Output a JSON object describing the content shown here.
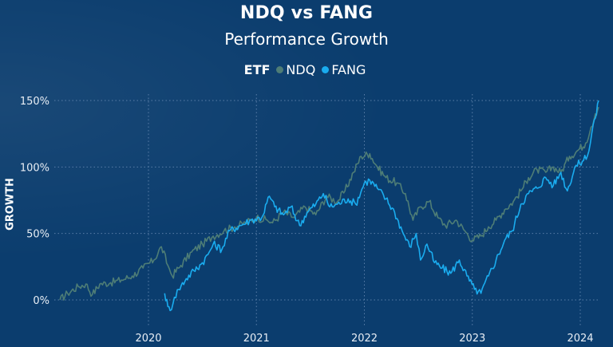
{
  "header": {
    "title": "NDQ vs FANG",
    "subtitle": "Performance Growth"
  },
  "legend": {
    "title": "ETF",
    "items": [
      {
        "label": "NDQ",
        "color": "#4E7D76"
      },
      {
        "label": "FANG",
        "color": "#1AACEF"
      }
    ]
  },
  "axes": {
    "ylabel": "GROWTH",
    "y_ticks": [
      "0%",
      "50%",
      "100%",
      "150%"
    ],
    "x_ticks": [
      "2020",
      "2021",
      "2022",
      "2023",
      "2024"
    ]
  },
  "colors": {
    "background": "#0B3D6E",
    "ndq": "#4E7D76",
    "fang": "#1AACEF",
    "grid": "#5A7EA8"
  },
  "chart_data": {
    "type": "line",
    "title": "NDQ vs FANG",
    "subtitle": "Performance Growth",
    "xlabel": "",
    "ylabel": "GROWTH",
    "ylim": [
      -15,
      155
    ],
    "xlim": [
      2019.15,
      2024.2
    ],
    "y_unit": "%",
    "grid": true,
    "legend_position": "top",
    "legend_title": "ETF",
    "series": [
      {
        "name": "NDQ",
        "color": "#4E7D76",
        "x": [
          2019.18,
          2019.25,
          2019.35,
          2019.42,
          2019.48,
          2019.55,
          2019.65,
          2019.75,
          2019.85,
          2019.95,
          2020.05,
          2020.12,
          2020.18,
          2020.22,
          2020.3,
          2020.4,
          2020.5,
          2020.6,
          2020.7,
          2020.8,
          2020.9,
          2021.0,
          2021.1,
          2021.15,
          2021.25,
          2021.35,
          2021.45,
          2021.55,
          2021.65,
          2021.75,
          2021.82,
          2021.9,
          2021.97,
          2022.05,
          2022.12,
          2022.2,
          2022.3,
          2022.38,
          2022.45,
          2022.52,
          2022.6,
          2022.68,
          2022.75,
          2022.85,
          2022.93,
          2023.0,
          2023.08,
          2023.15,
          2023.22,
          2023.3,
          2023.38,
          2023.45,
          2023.52,
          2023.6,
          2023.68,
          2023.75,
          2023.82,
          2023.9,
          2023.97,
          2024.05,
          2024.1,
          2024.14,
          2024.17
        ],
        "values": [
          0,
          5,
          10,
          12,
          4,
          12,
          13,
          15,
          18,
          24,
          30,
          40,
          26,
          18,
          26,
          36,
          42,
          48,
          52,
          55,
          58,
          62,
          60,
          58,
          66,
          62,
          70,
          64,
          78,
          74,
          82,
          96,
          108,
          110,
          100,
          92,
          88,
          80,
          60,
          70,
          74,
          62,
          56,
          60,
          52,
          45,
          48,
          55,
          60,
          68,
          74,
          82,
          92,
          98,
          96,
          100,
          96,
          108,
          112,
          118,
          130,
          140,
          145
        ]
      },
      {
        "name": "FANG",
        "color": "#1AACEF",
        "x": [
          2020.15,
          2020.18,
          2020.2,
          2020.24,
          2020.28,
          2020.35,
          2020.42,
          2020.5,
          2020.55,
          2020.6,
          2020.68,
          2020.75,
          2020.85,
          2020.95,
          2021.05,
          2021.12,
          2021.17,
          2021.25,
          2021.32,
          2021.4,
          2021.47,
          2021.55,
          2021.62,
          2021.68,
          2021.75,
          2021.85,
          2021.92,
          2022.0,
          2022.05,
          2022.12,
          2022.2,
          2022.28,
          2022.35,
          2022.42,
          2022.48,
          2022.52,
          2022.58,
          2022.65,
          2022.72,
          2022.8,
          2022.88,
          2022.95,
          2023.02,
          2023.08,
          2023.15,
          2023.22,
          2023.3,
          2023.37,
          2023.45,
          2023.52,
          2023.6,
          2023.68,
          2023.75,
          2023.82,
          2023.88,
          2023.95,
          2024.03,
          2024.08,
          2024.12,
          2024.15,
          2024.17
        ],
        "values": [
          5,
          -5,
          -8,
          2,
          8,
          16,
          22,
          28,
          34,
          42,
          38,
          52,
          56,
          60,
          62,
          78,
          70,
          64,
          70,
          56,
          66,
          72,
          80,
          70,
          72,
          76,
          72,
          88,
          90,
          84,
          76,
          66,
          52,
          40,
          50,
          30,
          42,
          28,
          24,
          20,
          30,
          18,
          8,
          5,
          18,
          30,
          45,
          52,
          72,
          80,
          84,
          92,
          86,
          96,
          82,
          100,
          105,
          112,
          132,
          140,
          150
        ]
      }
    ]
  }
}
